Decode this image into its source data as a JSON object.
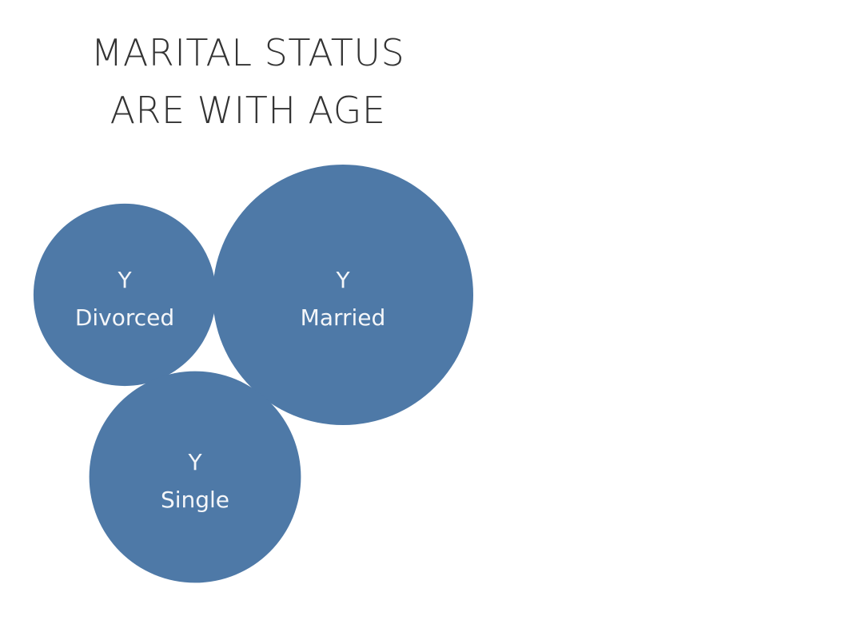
{
  "title": {
    "line1": "MARITAL STATUS",
    "line2": "ARE WITH AGE"
  },
  "colors": {
    "bubble": "#4e79a7",
    "bubble_text": "#f4f6f9",
    "title": "#333333"
  },
  "chart_data": {
    "type": "packed-bubble",
    "title": "MARITAL STATUS ARE WITH AGE",
    "measure_label": "Y",
    "categories": [
      "Divorced",
      "Married",
      "Single"
    ],
    "relative_size": [
      0.49,
      1.0,
      0.66
    ],
    "legend": "none",
    "grid": false
  }
}
